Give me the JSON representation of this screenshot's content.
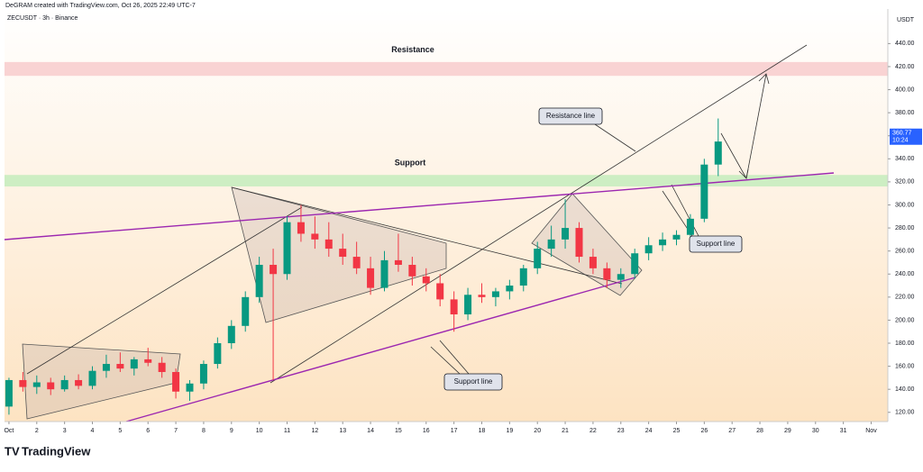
{
  "header": "DeGRAM created with TradingView.com, Oct 26, 2025 22:49 UTC-7",
  "footer": "TradingView",
  "chart_data": {
    "type": "candlestick",
    "title": "ZECUSDT · 3h · Binance",
    "y_unit": "USDT",
    "up_color": "#089981",
    "down_color": "#f23645",
    "x": [
      1,
      1.5,
      2,
      2.5,
      3,
      3.5,
      4,
      4.5,
      5,
      5.5,
      6,
      6.5,
      7,
      7.5,
      8,
      8.5,
      9,
      9.5,
      10,
      10.5,
      11,
      11.5,
      12,
      12.5,
      13,
      13.5,
      14,
      14.5,
      15,
      15.5,
      16,
      16.5,
      17,
      17.5,
      18,
      18.5,
      19,
      19.5,
      20,
      20.5,
      21,
      21.5,
      22,
      22.5,
      23,
      23.5,
      24,
      24.5,
      25,
      25.5,
      26,
      26.5
    ],
    "open": [
      125,
      148,
      142,
      146,
      140,
      148,
      143,
      156,
      162,
      158,
      166,
      163,
      155,
      138,
      145,
      162,
      180,
      195,
      220,
      248,
      240,
      285,
      275,
      270,
      262,
      255,
      245,
      228,
      252,
      248,
      238,
      232,
      218,
      205,
      222,
      220,
      225,
      230,
      245,
      262,
      270,
      280,
      255,
      245,
      235,
      240,
      258,
      265,
      270,
      274,
      288,
      335
    ],
    "high": [
      150,
      155,
      152,
      150,
      152,
      153,
      160,
      170,
      172,
      168,
      176,
      168,
      158,
      148,
      165,
      185,
      200,
      225,
      255,
      262,
      290,
      300,
      290,
      285,
      275,
      268,
      255,
      260,
      275,
      255,
      245,
      240,
      225,
      228,
      232,
      228,
      235,
      248,
      268,
      282,
      305,
      285,
      262,
      250,
      245,
      262,
      272,
      276,
      278,
      292,
      340,
      375
    ],
    "low": [
      118,
      138,
      136,
      135,
      138,
      140,
      140,
      150,
      155,
      152,
      160,
      150,
      132,
      130,
      140,
      158,
      175,
      190,
      215,
      148,
      235,
      268,
      262,
      255,
      248,
      240,
      222,
      225,
      242,
      230,
      225,
      212,
      190,
      200,
      215,
      212,
      218,
      225,
      240,
      255,
      262,
      250,
      240,
      228,
      228,
      236,
      252,
      260,
      265,
      270,
      285,
      325
    ],
    "close": [
      148,
      142,
      146,
      140,
      148,
      143,
      156,
      162,
      158,
      166,
      163,
      155,
      138,
      145,
      162,
      180,
      195,
      220,
      248,
      240,
      285,
      275,
      270,
      262,
      255,
      245,
      228,
      252,
      248,
      238,
      232,
      218,
      205,
      222,
      220,
      225,
      230,
      245,
      262,
      270,
      280,
      255,
      245,
      235,
      240,
      258,
      265,
      270,
      274,
      288,
      335,
      355
    ],
    "last_price": 360.77,
    "countdown": "10:24",
    "ylim": [
      112,
      470
    ],
    "yticks": [
      {
        "value": 120,
        "label": "120.00"
      },
      {
        "value": 140,
        "label": "140.00"
      },
      {
        "value": 160,
        "label": "160.00"
      },
      {
        "value": 180,
        "label": "180.00"
      },
      {
        "value": 200,
        "label": "200.00"
      },
      {
        "value": 220,
        "label": "220.00"
      },
      {
        "value": 240,
        "label": "240.00"
      },
      {
        "value": 260,
        "label": "260.00"
      },
      {
        "value": 280,
        "label": "280.00"
      },
      {
        "value": 300,
        "label": "300.00"
      },
      {
        "value": 320,
        "label": "320.00"
      },
      {
        "value": 340,
        "label": "340.00"
      },
      {
        "value": 360,
        "label": "360.00"
      },
      {
        "value": 380,
        "label": "380.00"
      },
      {
        "value": 400,
        "label": "400.00"
      },
      {
        "value": 420,
        "label": "420.00"
      },
      {
        "value": 440,
        "label": "440.00"
      }
    ],
    "xlim": [
      0.84,
      32.6
    ],
    "xticks": [
      {
        "value": 1,
        "label": "Oct"
      },
      2,
      3,
      4,
      5,
      6,
      7,
      8,
      9,
      10,
      11,
      12,
      13,
      14,
      15,
      16,
      17,
      18,
      19,
      20,
      21,
      22,
      23,
      24,
      25,
      26,
      27,
      28,
      29,
      30,
      31,
      {
        "value": 32,
        "label": "Nov"
      }
    ],
    "zones": [
      {
        "label": "Resistance",
        "range": [
          412,
          424
        ],
        "color": "#f9d3d3"
      },
      {
        "label": "Support",
        "range": [
          316,
          326
        ],
        "color": "#cdeec3"
      }
    ],
    "callouts": [
      "Resistance line",
      "Support line",
      "Support line"
    ]
  }
}
